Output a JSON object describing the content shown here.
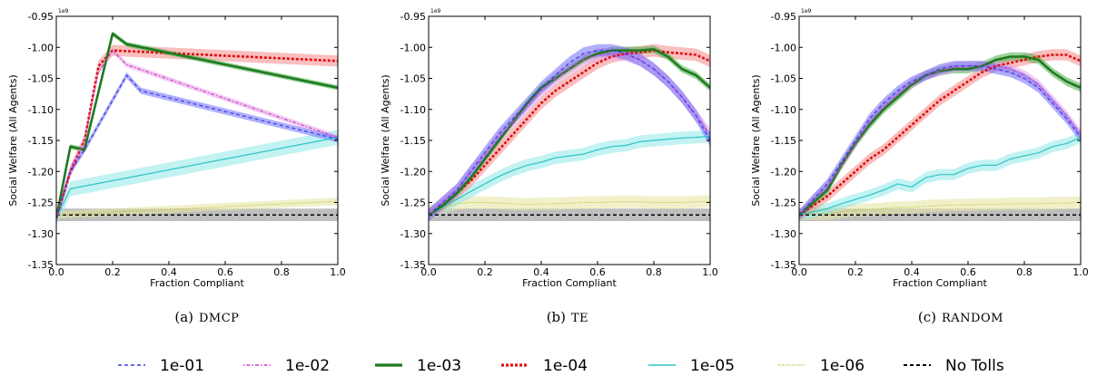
{
  "chart_data": [
    {
      "type": "line",
      "caption_prefix": "(a)",
      "caption_name": "DMCP",
      "xlabel": "Fraction Compliant",
      "ylabel": "Social Welfare (All Agents)",
      "y_exponent": "1e9",
      "xlim": [
        0.0,
        1.0
      ],
      "ylim": [
        -1.35,
        -0.95
      ],
      "xticks": [
        "0.0",
        "0.2",
        "0.4",
        "0.6",
        "0.8",
        "1.0"
      ],
      "yticks": [
        "-0.95",
        "-1.00",
        "-1.05",
        "-1.10",
        "-1.15",
        "-1.20",
        "-1.25",
        "-1.30",
        "-1.35"
      ],
      "series": [
        {
          "name": "1e-01",
          "x": [
            0.0,
            0.05,
            0.1,
            0.2,
            0.25,
            0.3,
            1.0
          ],
          "y": [
            -1.275,
            -1.2,
            -1.165,
            -1.085,
            -1.045,
            -1.07,
            -1.148
          ],
          "band": 0.005
        },
        {
          "name": "1e-02",
          "x": [
            0.0,
            0.05,
            0.1,
            0.15,
            0.2,
            0.25,
            1.0
          ],
          "y": [
            -1.275,
            -1.195,
            -1.15,
            -1.04,
            -1.005,
            -1.028,
            -1.145
          ],
          "band": 0.004
        },
        {
          "name": "1e-03",
          "x": [
            0.0,
            0.05,
            0.1,
            0.2,
            0.25,
            1.0
          ],
          "y": [
            -1.275,
            -1.16,
            -1.165,
            -0.978,
            -0.995,
            -1.065
          ],
          "band": 0.004
        },
        {
          "name": "1e-04",
          "x": [
            0.0,
            0.05,
            0.1,
            0.15,
            0.2,
            1.0
          ],
          "y": [
            -1.275,
            -1.2,
            -1.15,
            -1.03,
            -1.005,
            -1.022
          ],
          "band": 0.009
        },
        {
          "name": "1e-05",
          "x": [
            0.0,
            0.05,
            1.0
          ],
          "y": [
            -1.275,
            -1.228,
            -1.145
          ],
          "band": 0.012
        },
        {
          "name": "1e-06",
          "x": [
            0.0,
            1.0
          ],
          "y": [
            -1.27,
            -1.248
          ],
          "band": 0.006
        },
        {
          "name": "No Tolls",
          "x": [
            0.0,
            1.0
          ],
          "y": [
            -1.27,
            -1.27
          ],
          "band": 0.01
        }
      ]
    },
    {
      "type": "line",
      "caption_prefix": "(b)",
      "caption_name": "TE",
      "xlabel": "Fraction Compliant",
      "ylabel": "Social Welfare (All Agents)",
      "y_exponent": "1e9",
      "xlim": [
        0.0,
        1.0
      ],
      "ylim": [
        -1.35,
        -0.95
      ],
      "xticks": [
        "0.0",
        "0.2",
        "0.4",
        "0.6",
        "0.8",
        "1.0"
      ],
      "yticks": [
        "-0.95",
        "-1.00",
        "-1.05",
        "-1.10",
        "-1.15",
        "-1.20",
        "-1.25",
        "-1.30",
        "-1.35"
      ],
      "series": [
        {
          "name": "1e-01",
          "x": [
            0.0,
            0.05,
            0.1,
            0.15,
            0.2,
            0.25,
            0.3,
            0.35,
            0.4,
            0.45,
            0.5,
            0.55,
            0.6,
            0.65,
            0.7,
            0.75,
            0.8,
            0.85,
            0.9,
            0.95,
            1.0
          ],
          "y": [
            -1.27,
            -1.25,
            -1.23,
            -1.2,
            -1.17,
            -1.14,
            -1.115,
            -1.09,
            -1.065,
            -1.045,
            -1.025,
            -1.01,
            -1.005,
            -1.005,
            -1.01,
            -1.02,
            -1.035,
            -1.055,
            -1.08,
            -1.11,
            -1.15
          ],
          "band": 0.01
        },
        {
          "name": "1e-02",
          "x": [
            0.0,
            0.05,
            0.1,
            0.15,
            0.2,
            0.25,
            0.3,
            0.35,
            0.4,
            0.45,
            0.5,
            0.55,
            0.6,
            0.65,
            0.7,
            0.75,
            0.8,
            0.85,
            0.9,
            0.95,
            1.0
          ],
          "y": [
            -1.27,
            -1.25,
            -1.23,
            -1.2,
            -1.175,
            -1.145,
            -1.12,
            -1.095,
            -1.07,
            -1.05,
            -1.035,
            -1.02,
            -1.012,
            -1.01,
            -1.012,
            -1.02,
            -1.035,
            -1.055,
            -1.08,
            -1.11,
            -1.14
          ],
          "band": 0.01
        },
        {
          "name": "1e-03",
          "x": [
            0.0,
            0.05,
            0.1,
            0.15,
            0.2,
            0.25,
            0.3,
            0.35,
            0.4,
            0.45,
            0.5,
            0.55,
            0.6,
            0.65,
            0.7,
            0.75,
            0.8,
            0.85,
            0.9,
            0.95,
            1.0
          ],
          "y": [
            -1.27,
            -1.255,
            -1.235,
            -1.21,
            -1.18,
            -1.15,
            -1.12,
            -1.09,
            -1.065,
            -1.05,
            -1.035,
            -1.02,
            -1.01,
            -1.005,
            -1.005,
            -1.005,
            -1.003,
            -1.015,
            -1.035,
            -1.045,
            -1.065
          ],
          "band": 0.006
        },
        {
          "name": "1e-04",
          "x": [
            0.0,
            0.05,
            0.1,
            0.15,
            0.2,
            0.25,
            0.3,
            0.35,
            0.4,
            0.45,
            0.5,
            0.55,
            0.6,
            0.65,
            0.7,
            0.75,
            0.8,
            0.85,
            0.9,
            0.95,
            1.0
          ],
          "y": [
            -1.27,
            -1.255,
            -1.235,
            -1.215,
            -1.19,
            -1.165,
            -1.14,
            -1.115,
            -1.09,
            -1.07,
            -1.055,
            -1.04,
            -1.025,
            -1.015,
            -1.01,
            -1.008,
            -1.005,
            -1.008,
            -1.01,
            -1.012,
            -1.022
          ],
          "band": 0.01
        },
        {
          "name": "1e-05",
          "x": [
            0.0,
            0.05,
            0.1,
            0.15,
            0.2,
            0.25,
            0.3,
            0.35,
            0.4,
            0.45,
            0.5,
            0.55,
            0.6,
            0.65,
            0.7,
            0.75,
            0.8,
            0.85,
            0.9,
            0.95,
            1.0
          ],
          "y": [
            -1.27,
            -1.258,
            -1.245,
            -1.232,
            -1.22,
            -1.208,
            -1.198,
            -1.19,
            -1.185,
            -1.178,
            -1.175,
            -1.172,
            -1.165,
            -1.16,
            -1.158,
            -1.152,
            -1.15,
            -1.148,
            -1.146,
            -1.145,
            -1.143
          ],
          "band": 0.01
        },
        {
          "name": "1e-06",
          "x": [
            0.0,
            0.05,
            0.1,
            0.15,
            0.2,
            0.25,
            0.3,
            0.35,
            0.4,
            0.45,
            0.5,
            0.55,
            0.6,
            0.65,
            0.7,
            0.75,
            0.8,
            0.85,
            0.9,
            0.95,
            1.0
          ],
          "y": [
            -1.265,
            -1.258,
            -1.252,
            -1.25,
            -1.25,
            -1.251,
            -1.252,
            -1.253,
            -1.252,
            -1.252,
            -1.251,
            -1.25,
            -1.25,
            -1.249,
            -1.249,
            -1.249,
            -1.25,
            -1.25,
            -1.25,
            -1.249,
            -1.248
          ],
          "band": 0.01
        },
        {
          "name": "No Tolls",
          "x": [
            0.0,
            1.0
          ],
          "y": [
            -1.27,
            -1.27
          ],
          "band": 0.01
        }
      ]
    },
    {
      "type": "line",
      "caption_prefix": "(c)",
      "caption_name": "RANDOM",
      "xlabel": "Fraction Compliant",
      "ylabel": "Social Welfare (All Agents)",
      "y_exponent": "1e9",
      "xlim": [
        0.0,
        1.0
      ],
      "ylim": [
        -1.35,
        -0.95
      ],
      "xticks": [
        "0.0",
        "0.2",
        "0.4",
        "0.6",
        "0.8",
        "1.0"
      ],
      "yticks": [
        "-0.95",
        "-1.00",
        "-1.05",
        "-1.10",
        "-1.15",
        "-1.20",
        "-1.25",
        "-1.30",
        "-1.35"
      ],
      "series": [
        {
          "name": "1e-01",
          "x": [
            0.0,
            0.05,
            0.1,
            0.15,
            0.2,
            0.25,
            0.3,
            0.35,
            0.4,
            0.45,
            0.5,
            0.55,
            0.6,
            0.65,
            0.7,
            0.75,
            0.8,
            0.85,
            0.9,
            0.95,
            1.0
          ],
          "y": [
            -1.27,
            -1.245,
            -1.22,
            -1.185,
            -1.15,
            -1.115,
            -1.09,
            -1.07,
            -1.055,
            -1.045,
            -1.035,
            -1.03,
            -1.03,
            -1.03,
            -1.035,
            -1.04,
            -1.05,
            -1.065,
            -1.09,
            -1.115,
            -1.145
          ],
          "band": 0.008
        },
        {
          "name": "1e-02",
          "x": [
            0.0,
            0.05,
            0.1,
            0.15,
            0.2,
            0.25,
            0.3,
            0.35,
            0.4,
            0.45,
            0.5,
            0.55,
            0.6,
            0.65,
            0.7,
            0.75,
            0.8,
            0.85,
            0.9,
            0.95,
            1.0
          ],
          "y": [
            -1.27,
            -1.245,
            -1.225,
            -1.19,
            -1.155,
            -1.12,
            -1.095,
            -1.075,
            -1.058,
            -1.045,
            -1.038,
            -1.032,
            -1.03,
            -1.03,
            -1.03,
            -1.035,
            -1.045,
            -1.06,
            -1.085,
            -1.11,
            -1.14
          ],
          "band": 0.008
        },
        {
          "name": "1e-03",
          "x": [
            0.0,
            0.05,
            0.1,
            0.15,
            0.2,
            0.25,
            0.3,
            0.35,
            0.4,
            0.45,
            0.5,
            0.55,
            0.6,
            0.65,
            0.7,
            0.75,
            0.8,
            0.85,
            0.9,
            0.95,
            1.0
          ],
          "y": [
            -1.27,
            -1.25,
            -1.23,
            -1.19,
            -1.155,
            -1.125,
            -1.1,
            -1.08,
            -1.06,
            -1.045,
            -1.038,
            -1.035,
            -1.035,
            -1.03,
            -1.02,
            -1.015,
            -1.015,
            -1.02,
            -1.04,
            -1.055,
            -1.065
          ],
          "band": 0.007
        },
        {
          "name": "1e-04",
          "x": [
            0.0,
            0.05,
            0.1,
            0.15,
            0.2,
            0.25,
            0.3,
            0.35,
            0.4,
            0.45,
            0.5,
            0.55,
            0.6,
            0.65,
            0.7,
            0.75,
            0.8,
            0.85,
            0.9,
            0.95,
            1.0
          ],
          "y": [
            -1.27,
            -1.255,
            -1.24,
            -1.22,
            -1.2,
            -1.18,
            -1.165,
            -1.145,
            -1.125,
            -1.105,
            -1.085,
            -1.07,
            -1.055,
            -1.04,
            -1.03,
            -1.025,
            -1.02,
            -1.015,
            -1.012,
            -1.012,
            -1.022
          ],
          "band": 0.009
        },
        {
          "name": "1e-05",
          "x": [
            0.0,
            0.05,
            0.1,
            0.15,
            0.2,
            0.25,
            0.3,
            0.35,
            0.4,
            0.45,
            0.5,
            0.55,
            0.6,
            0.65,
            0.7,
            0.75,
            0.8,
            0.85,
            0.9,
            0.95,
            1.0
          ],
          "y": [
            -1.27,
            -1.265,
            -1.26,
            -1.252,
            -1.245,
            -1.238,
            -1.23,
            -1.22,
            -1.225,
            -1.21,
            -1.205,
            -1.205,
            -1.195,
            -1.19,
            -1.19,
            -1.18,
            -1.175,
            -1.17,
            -1.16,
            -1.155,
            -1.145
          ],
          "band": 0.009
        },
        {
          "name": "1e-06",
          "x": [
            0.0,
            0.05,
            0.1,
            0.15,
            0.2,
            0.25,
            0.3,
            0.35,
            0.4,
            0.45,
            0.5,
            0.55,
            0.6,
            0.65,
            0.7,
            0.75,
            0.8,
            0.85,
            0.9,
            0.95,
            1.0
          ],
          "y": [
            -1.268,
            -1.268,
            -1.268,
            -1.265,
            -1.262,
            -1.262,
            -1.26,
            -1.258,
            -1.258,
            -1.256,
            -1.255,
            -1.254,
            -1.254,
            -1.253,
            -1.253,
            -1.252,
            -1.252,
            -1.252,
            -1.251,
            -1.251,
            -1.25
          ],
          "band": 0.01
        },
        {
          "name": "No Tolls",
          "x": [
            0.0,
            1.0
          ],
          "y": [
            -1.27,
            -1.27
          ],
          "band": 0.01
        }
      ]
    }
  ],
  "legend": [
    {
      "name": "1e-01",
      "color": "#3a3ae8",
      "dash": "4,3",
      "width": 1.2
    },
    {
      "name": "1e-02",
      "color": "#cc44cc",
      "dash": "1.5,2,4,2",
      "width": 1.2
    },
    {
      "name": "1e-03",
      "color": "#1e7a1e",
      "dash": "",
      "width": 2.6
    },
    {
      "name": "1e-04",
      "color": "#e01010",
      "dash": "3,2",
      "width": 2.6
    },
    {
      "name": "1e-05",
      "color": "#2ec4c4",
      "dash": "",
      "width": 1.2
    },
    {
      "name": "1e-06",
      "color": "#b8b820",
      "dash": "1,1.5",
      "width": 1.0
    },
    {
      "name": "No Tolls",
      "color": "#000000",
      "dash": "4,3",
      "width": 1.5
    }
  ],
  "band_colors": {
    "1e-01": "#6f6ff5",
    "1e-02": "#e8a0e8",
    "1e-03": "#4caf4c",
    "1e-04": "#f48a8a",
    "1e-05": "#8fe8e8",
    "1e-06": "#e4e4a0",
    "No Tolls": "#a8a8a8"
  }
}
